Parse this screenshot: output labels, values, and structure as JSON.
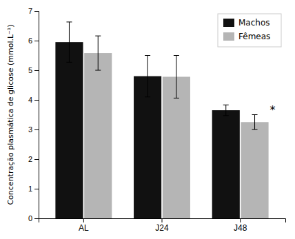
{
  "chart_data": {
    "type": "bar",
    "categories": [
      "AL",
      "J24",
      "J48"
    ],
    "series": [
      {
        "name": "Machos",
        "color": "#111111",
        "values": [
          5.95,
          4.8,
          3.65
        ],
        "errors": [
          0.68,
          0.7,
          0.18
        ]
      },
      {
        "name": "Fêmeas",
        "color": "#b5b5b5",
        "values": [
          5.58,
          4.78,
          3.25
        ],
        "errors": [
          0.58,
          0.72,
          0.25
        ]
      }
    ],
    "ylabel": "Concentração plasmática de glicose (mmol.L⁻¹)",
    "ylim": [
      0,
      7
    ],
    "yticks": [
      0,
      1,
      2,
      3,
      4,
      5,
      6,
      7
    ],
    "grid": false,
    "legend": "upper right",
    "annotations": [
      {
        "text": "*",
        "category": "J48",
        "series": "Fêmeas"
      }
    ]
  }
}
